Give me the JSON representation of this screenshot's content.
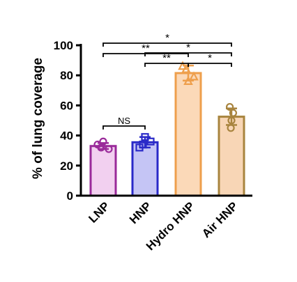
{
  "chart_data": {
    "type": "bar",
    "ylabel": "% of lung coverage",
    "ylim": [
      0,
      100
    ],
    "yticks": [
      "0",
      "20",
      "40",
      "60",
      "80",
      "100"
    ],
    "categories": [
      "LNP",
      "HNP",
      "Hydro HNP",
      "Air HNP"
    ],
    "values": [
      33,
      35.5,
      81.5,
      52.5
    ],
    "errors": [
      2,
      3.5,
      5,
      5.5
    ],
    "points": [
      [
        34,
        31,
        36,
        32
      ],
      [
        32,
        36,
        39,
        34
      ],
      [
        86,
        79,
        76,
        84
      ],
      [
        59,
        55,
        50,
        45
      ]
    ],
    "markers": [
      "circle",
      "square",
      "triangle",
      "circle"
    ],
    "colors": {
      "fill": [
        "#f2d0f0",
        "#c5c5f5",
        "#fbd9b8",
        "#f8d6b6"
      ],
      "stroke": [
        "#9a2a9a",
        "#2a2ac8",
        "#ee9f4c",
        "#a8843e"
      ]
    },
    "significance": [
      {
        "from": 0,
        "to": 3,
        "label": "*"
      },
      {
        "from": 0,
        "to": 2,
        "label": "**"
      },
      {
        "from": 1,
        "to": 3,
        "label": "*"
      },
      {
        "from": 1,
        "to": 2,
        "label": "**"
      },
      {
        "from": 2,
        "to": 3,
        "label": "*"
      },
      {
        "from": 0,
        "to": 1,
        "label": "NS"
      }
    ]
  }
}
